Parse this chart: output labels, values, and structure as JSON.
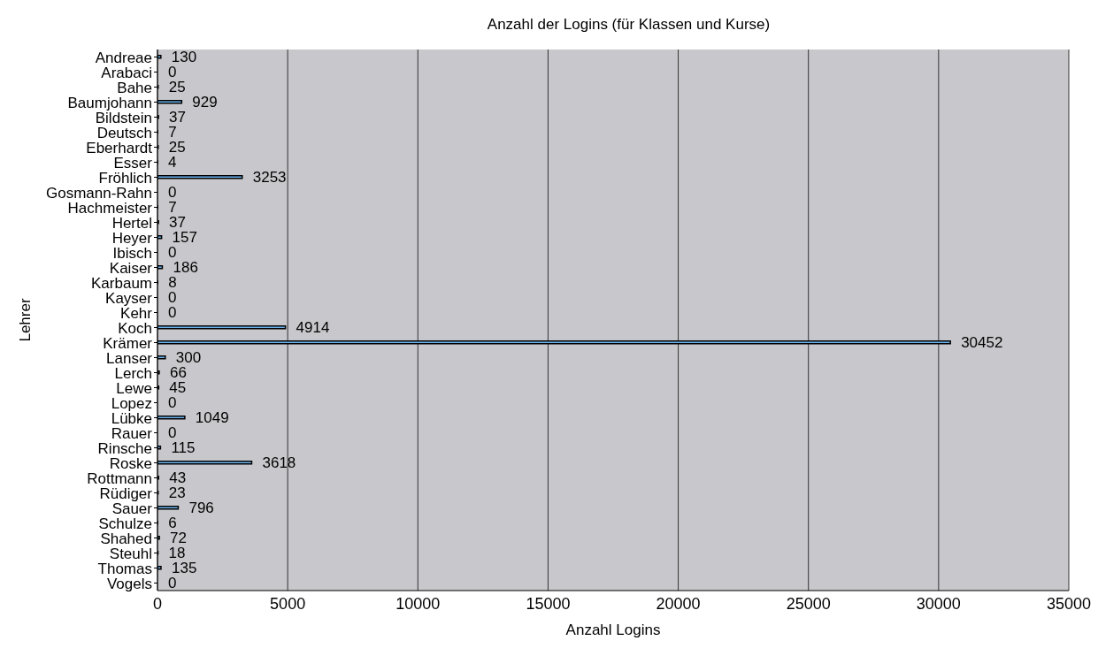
{
  "chart_data": {
    "type": "bar",
    "orientation": "horizontal",
    "title": "Anzahl der Logins (für Klassen und Kurse)",
    "xlabel": "Anzahl Logins",
    "ylabel": "Lehrer",
    "categories": [
      "Andreae",
      "Arabaci",
      "Bahe",
      "Baumjohann",
      "Bildstein",
      "Deutsch",
      "Eberhardt",
      "Esser",
      "Fröhlich",
      "Gosmann-Rahn",
      "Hachmeister",
      "Hertel",
      "Heyer",
      "Ibisch",
      "Kaiser",
      "Karbaum",
      "Kayser",
      "Kehr",
      "Koch",
      "Krämer",
      "Lanser",
      "Lerch",
      "Lewe",
      "Lopez",
      "Lübke",
      "Rauer",
      "Rinsche",
      "Roske",
      "Rottmann",
      "Rüdiger",
      "Sauer",
      "Schulze",
      "Shahed",
      "Steuhl",
      "Thomas",
      "Vogels"
    ],
    "values": [
      130,
      0,
      25,
      929,
      37,
      7,
      25,
      4,
      3253,
      0,
      7,
      37,
      157,
      0,
      186,
      8,
      0,
      0,
      4914,
      30452,
      300,
      66,
      45,
      0,
      1049,
      0,
      115,
      3618,
      43,
      23,
      796,
      6,
      72,
      18,
      135,
      0
    ],
    "color": "#6cb4ee",
    "xlim": [
      0,
      35000
    ],
    "xticks": [
      0,
      5000,
      10000,
      15000,
      20000,
      25000,
      30000,
      35000
    ],
    "grid": "x",
    "data_labels": true
  }
}
